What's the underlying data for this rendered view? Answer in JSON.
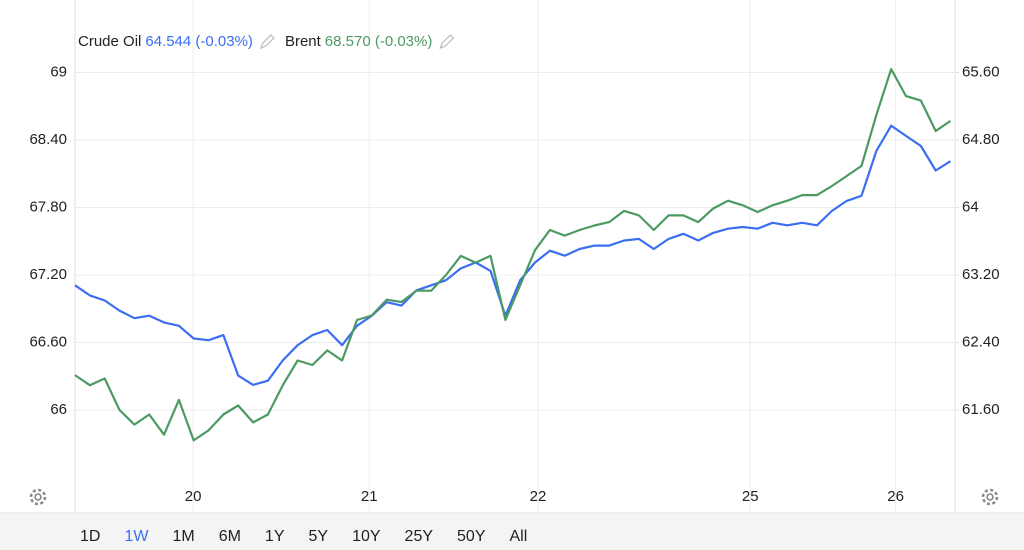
{
  "chart_data": {
    "type": "line",
    "x": [
      0,
      1,
      2,
      3,
      4,
      5,
      6,
      7,
      8,
      9,
      10,
      11,
      12,
      13,
      14,
      15,
      16,
      17,
      18,
      19,
      20,
      21,
      22,
      23,
      24,
      25,
      26,
      27,
      28,
      29,
      30,
      31,
      32,
      33,
      34,
      35,
      36,
      37,
      38,
      39,
      40,
      41,
      42,
      43,
      44,
      45,
      46,
      47,
      48,
      49,
      50,
      51,
      52,
      53,
      54,
      55,
      56,
      57,
      58,
      59
    ],
    "xlim": [
      0,
      59.3
    ],
    "xticks": [
      {
        "value": 7.96,
        "label": "20"
      },
      {
        "value": 19.83,
        "label": "21"
      },
      {
        "value": 31.2,
        "label": "22"
      },
      {
        "value": 45.5,
        "label": "25"
      },
      {
        "value": 55.3,
        "label": "26"
      }
    ],
    "ylim": [
      65.36,
      69.6
    ],
    "yticks": [
      66,
      {
        "value": 66.6,
        "label": "66.60"
      },
      {
        "value": 67.2,
        "label": "67.20"
      },
      {
        "value": 67.8,
        "label": "67.80"
      },
      {
        "value": 68.4,
        "label": "68.40"
      },
      69
    ],
    "y2lim": [
      60.75,
      66.4
    ],
    "y2ticks": [
      {
        "value": 61.6,
        "label": "61.60"
      },
      {
        "value": 62.4,
        "label": "62.40"
      },
      {
        "value": 63.2,
        "label": "63.20"
      },
      64,
      {
        "value": 64.8,
        "label": "64.80"
      },
      {
        "value": 65.6,
        "label": "65.60"
      }
    ],
    "grid": true,
    "series": [
      {
        "name": "Crude Oil",
        "quote": "64.544 (-0.03%)",
        "color": "#3b6ef0",
        "axis": "y2",
        "values": [
          63.08,
          62.96,
          62.9,
          62.78,
          62.69,
          62.72,
          62.64,
          62.6,
          62.45,
          62.43,
          62.49,
          62.01,
          61.9,
          61.95,
          62.19,
          62.37,
          62.49,
          62.55,
          62.37,
          62.6,
          62.72,
          62.88,
          62.84,
          63.02,
          63.08,
          63.14,
          63.28,
          63.35,
          63.25,
          62.72,
          63.14,
          63.35,
          63.49,
          63.43,
          63.51,
          63.55,
          63.55,
          63.61,
          63.63,
          63.51,
          63.63,
          63.69,
          63.61,
          63.7,
          63.75,
          63.77,
          63.75,
          63.82,
          63.79,
          63.82,
          63.79,
          63.96,
          64.08,
          64.14,
          64.67,
          64.97,
          64.85,
          64.73,
          64.44,
          64.55
        ]
      },
      {
        "name": "Brent",
        "quote": "68.570 (-0.03%)",
        "color": "#4c9a63",
        "values": [
          66.31,
          66.22,
          66.28,
          66.0,
          65.87,
          65.96,
          65.78,
          66.09,
          65.73,
          65.82,
          65.96,
          66.04,
          65.89,
          65.96,
          66.22,
          66.44,
          66.4,
          66.53,
          66.44,
          66.8,
          66.84,
          66.98,
          66.96,
          67.06,
          67.06,
          67.2,
          67.37,
          67.31,
          67.37,
          66.8,
          67.11,
          67.42,
          67.6,
          67.55,
          67.6,
          67.64,
          67.67,
          67.77,
          67.73,
          67.6,
          67.73,
          67.73,
          67.67,
          67.79,
          67.86,
          67.82,
          67.76,
          67.82,
          67.86,
          67.91,
          67.91,
          67.99,
          68.08,
          68.17,
          68.62,
          69.03,
          68.79,
          68.75,
          68.48,
          68.57
        ]
      }
    ],
    "ranges": [
      "1D",
      "1W",
      "1M",
      "6M",
      "1Y",
      "5Y",
      "10Y",
      "25Y",
      "50Y",
      "All"
    ],
    "selected_range": "1W"
  }
}
